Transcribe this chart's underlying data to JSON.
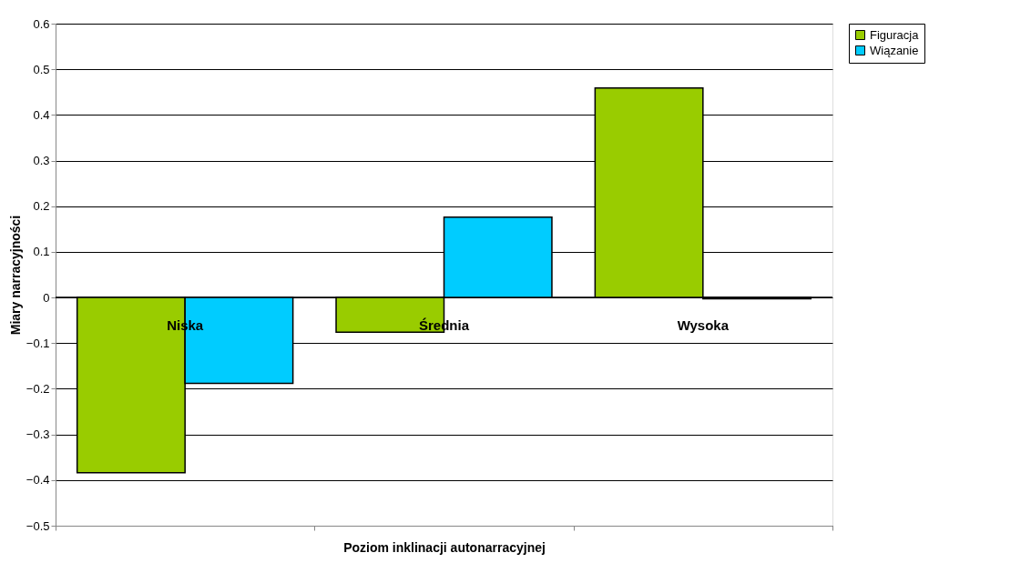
{
  "chart_data": {
    "type": "bar",
    "xlabel": "Poziom inklinacji autonarracyjnej",
    "ylabel": "Miary narracyjności",
    "categories": [
      "Niska",
      "Średnia",
      "Wysoka"
    ],
    "series": [
      {
        "name": "Figuracja",
        "color": "#99cc00",
        "values": [
          -0.384,
          -0.076,
          0.459
        ]
      },
      {
        "name": "Wiązanie",
        "color": "#00ccff",
        "values": [
          -0.188,
          0.176,
          -0.003
        ]
      }
    ],
    "ylim": [
      -0.5,
      0.6
    ],
    "yticks": [
      -0.5,
      -0.4,
      -0.3,
      -0.2,
      -0.1,
      0,
      0.1,
      0.2,
      0.3,
      0.4,
      0.5,
      0.6
    ],
    "grid": "y",
    "legend": "right"
  }
}
